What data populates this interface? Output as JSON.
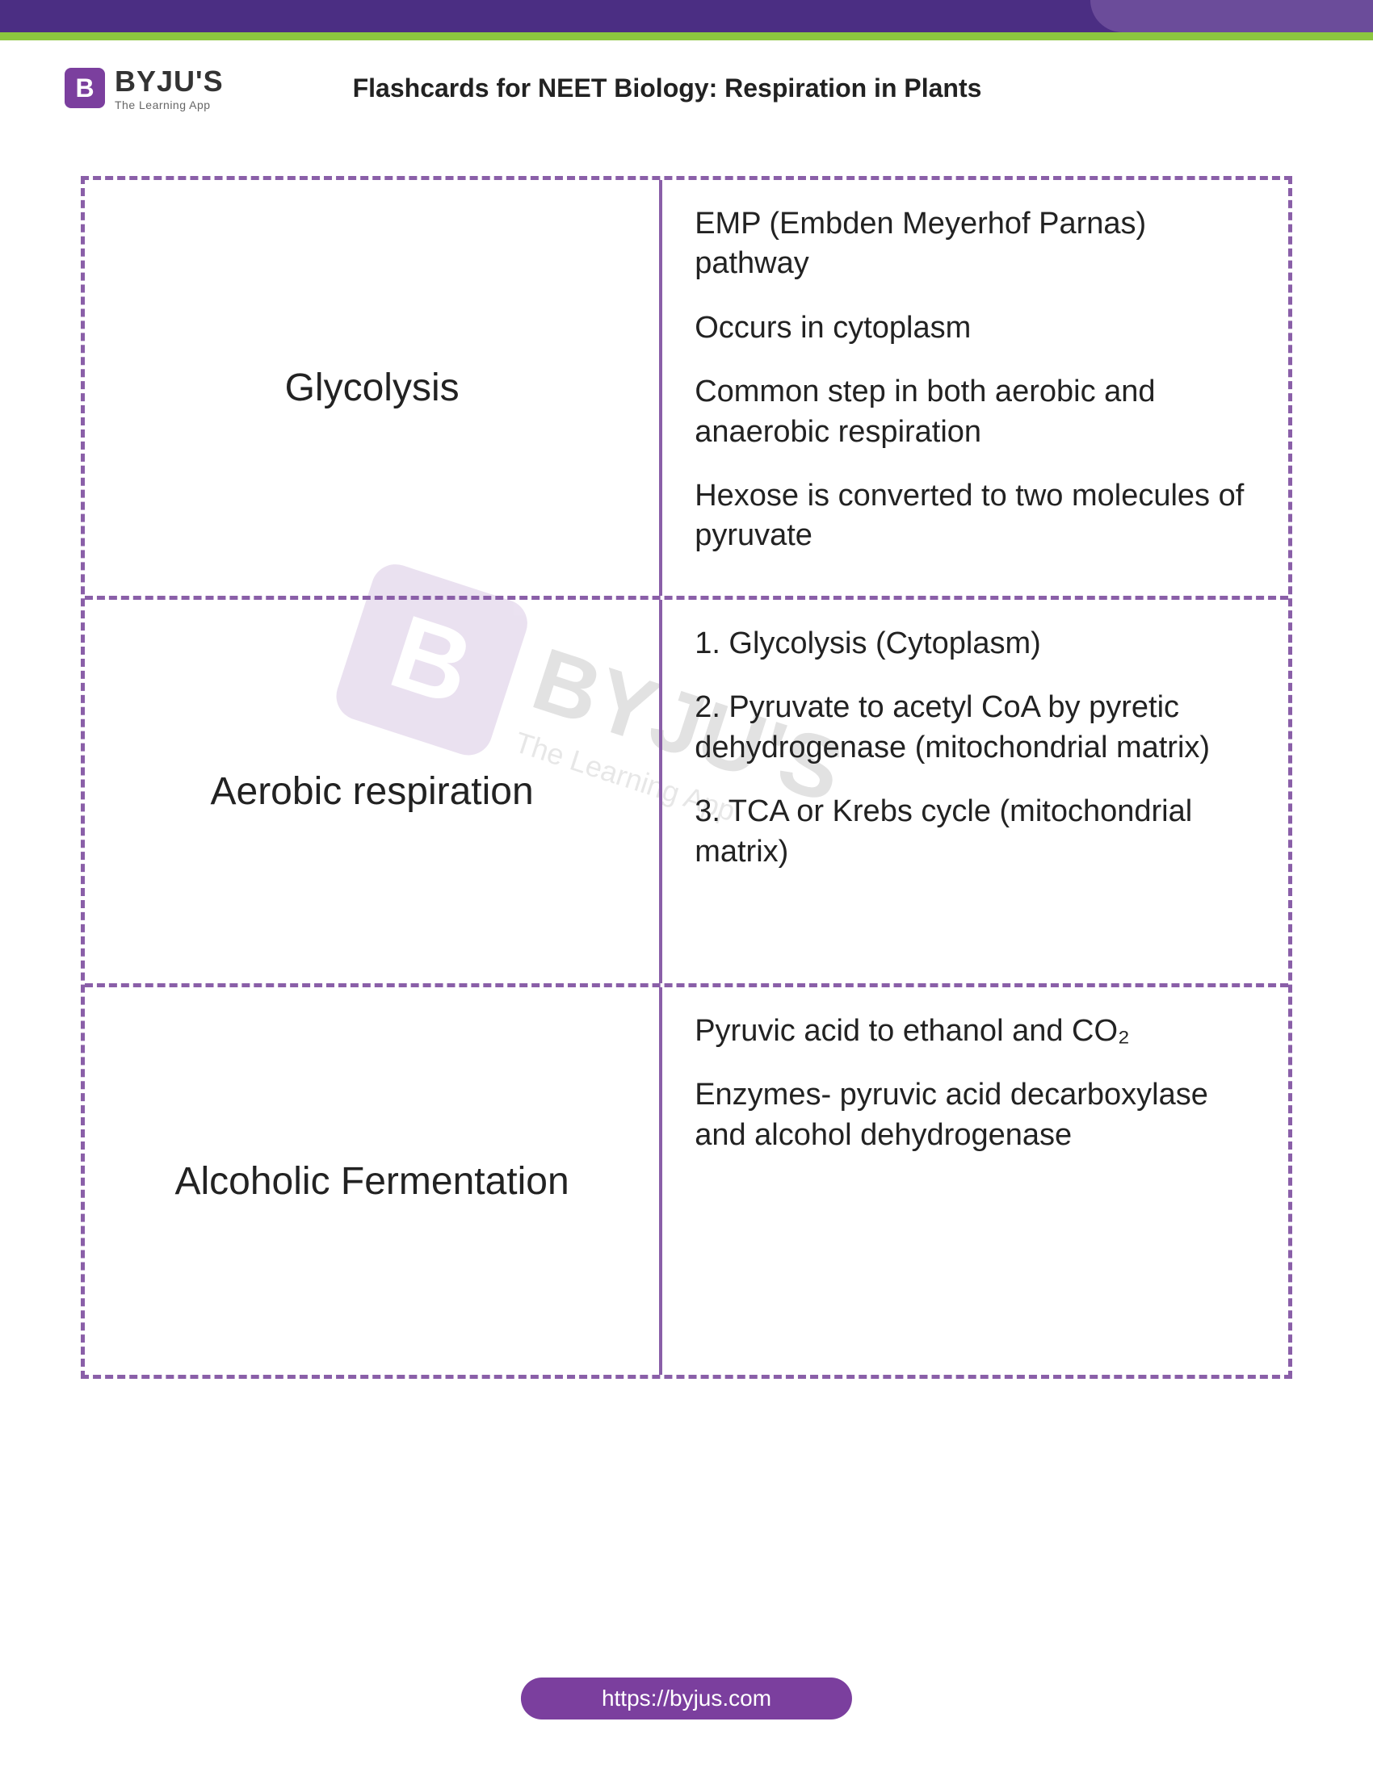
{
  "brand": {
    "icon_letter": "B",
    "name": "BYJU'S",
    "tagline": "The Learning App"
  },
  "page_title": "Flashcards for NEET Biology: Respiration in Plants",
  "colors": {
    "purple_dark": "#4b2e83",
    "purple_mid": "#6b4c9a",
    "green": "#8cc63f",
    "border": "#8a5fa8",
    "brand_purple": "#7b3f9e"
  },
  "rows": [
    {
      "term": "Glycolysis",
      "points": [
        "EMP (Embden Meyerhof Parnas) pathway",
        "Occurs in cytoplasm",
        "Common step in both aerobic and anaerobic respiration",
        "Hexose is converted to two molecules of pyruvate"
      ]
    },
    {
      "term": "Aerobic respiration",
      "points": [
        "1. Glycolysis (Cytoplasm)",
        "2. Pyruvate to acetyl CoA by pyretic dehydrogenase (mitochondrial matrix)",
        "3. TCA or Krebs cycle (mitochondrial matrix)"
      ]
    },
    {
      "term": "Alcoholic Fermentation",
      "points": [
        "Pyruvic acid to ethanol and CO₂",
        "Enzymes- pyruvic acid decarboxylase and alcohol dehydrogenase"
      ]
    }
  ],
  "footer_url": "https://byjus.com"
}
